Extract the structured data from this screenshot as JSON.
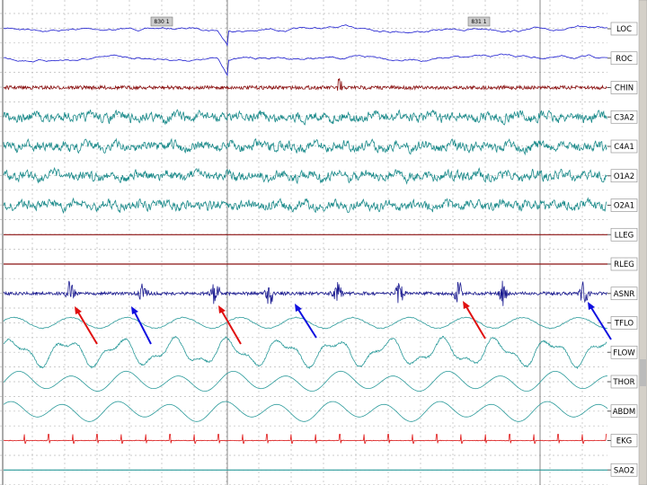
{
  "epoch_markers": [
    "830 1",
    "831 1"
  ],
  "channels": [
    {
      "label": "LOC",
      "color": "#1a1ad0"
    },
    {
      "label": "ROC",
      "color": "#1a1ad0"
    },
    {
      "label": "CHIN",
      "color": "#8b1010"
    },
    {
      "label": "C3A2",
      "color": "#1a8a8a"
    },
    {
      "label": "C4A1",
      "color": "#1a8a8a"
    },
    {
      "label": "O1A2",
      "color": "#1a8a8a"
    },
    {
      "label": "O2A1",
      "color": "#1a8a8a"
    },
    {
      "label": "LLEG",
      "color": "#8b1010"
    },
    {
      "label": "RLEG",
      "color": "#8b1010"
    },
    {
      "label": "ASNR",
      "color": "#1a1a90"
    },
    {
      "label": "TFLO",
      "color": "#2a9a9a"
    },
    {
      "label": "FLOW",
      "color": "#2a9a9a"
    },
    {
      "label": "THOR",
      "color": "#2a9a9a"
    },
    {
      "label": "ABDM",
      "color": "#2a9a9a"
    },
    {
      "label": "EKG",
      "color": "#e01818"
    },
    {
      "label": "SAO2",
      "color": "#2a9a9a"
    }
  ]
}
